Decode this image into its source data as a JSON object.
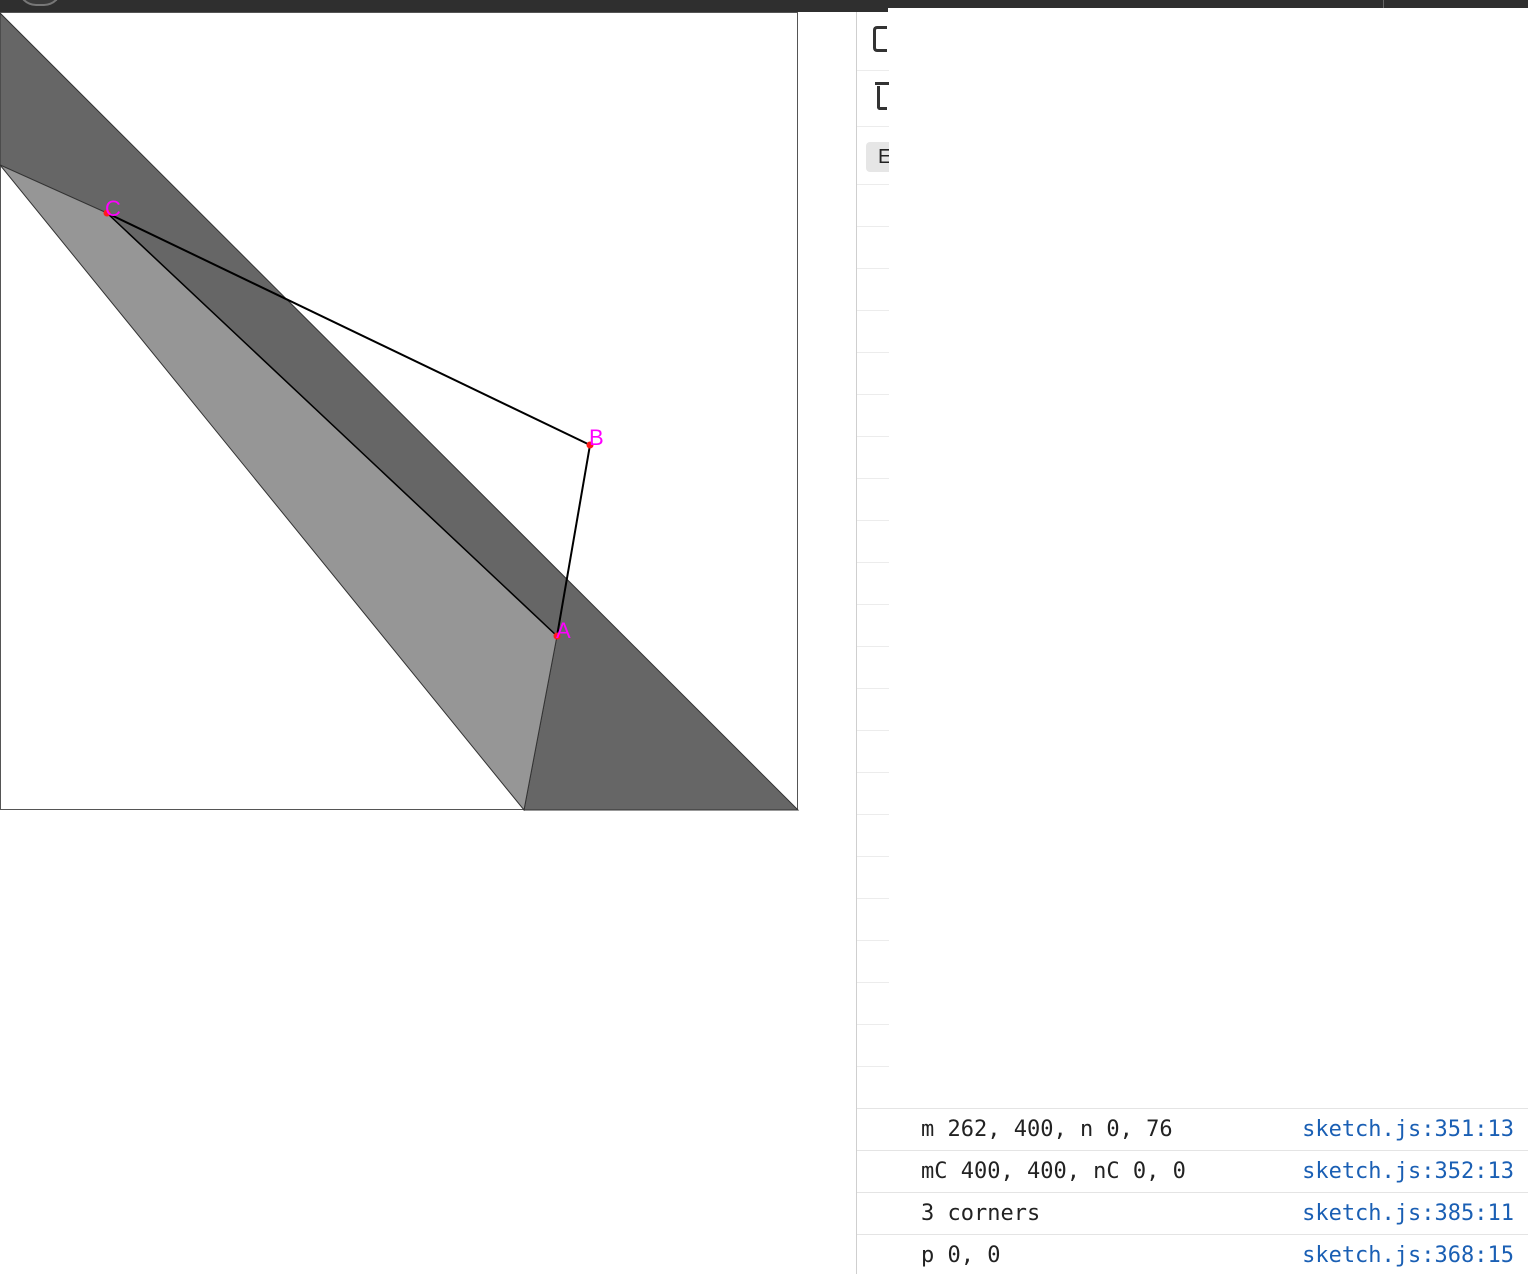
{
  "sketch": {
    "points": [
      {
        "label": "A"
      },
      {
        "label": "B"
      },
      {
        "label": "C"
      }
    ],
    "colors": {
      "dark_band": "#666666",
      "light_band": "#969696",
      "point_marker": "#ff1a1a",
      "point_label": "#ff00ff",
      "lines": "#000000",
      "frame": "#555555"
    }
  },
  "devtools": {
    "strip_chip_label": "E",
    "console": {
      "messages": [
        {
          "text": "m 262, 400, n 0, 76",
          "source": "sketch.js:351:13"
        },
        {
          "text": "mC 400, 400, nC 0, 0",
          "source": "sketch.js:352:13"
        },
        {
          "text": "3 corners",
          "source": "sketch.js:385:11"
        },
        {
          "text": "p 0, 0",
          "source": "sketch.js:368:15"
        }
      ]
    }
  }
}
